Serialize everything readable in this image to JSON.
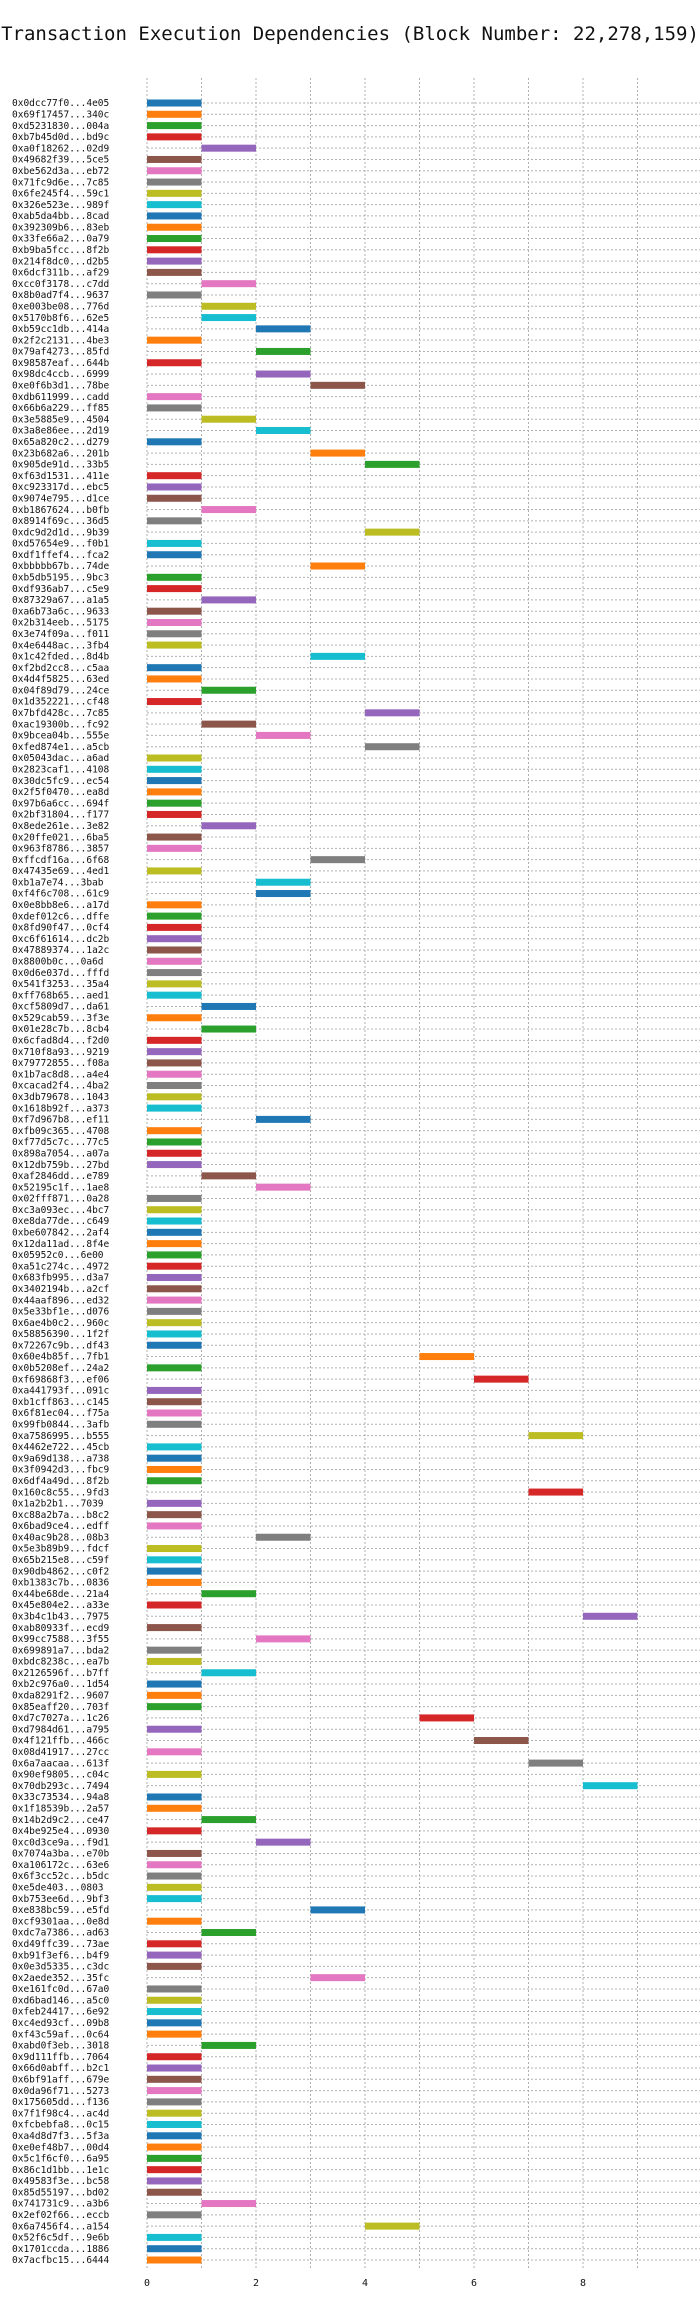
{
  "chart_data": {
    "type": "bar",
    "orientation": "horizontal-gantt",
    "title": "Transaction Execution Dependencies (Block Number: 22,278,159)",
    "xlabel": "",
    "ylabel": "",
    "xlim": [
      0,
      9.5
    ],
    "xticks": [
      0,
      2,
      4,
      6,
      8
    ],
    "grid": true,
    "palette": [
      "#1f77b4",
      "#ff7f0e",
      "#2ca02c",
      "#d62728",
      "#9467bd",
      "#8c564b",
      "#e377c2",
      "#7f7f7f",
      "#bcbd22",
      "#17becf"
    ],
    "bars": [
      {
        "label": "0x0dcc77f0...4e05",
        "start": 0,
        "end": 1
      },
      {
        "label": "0x69f17457...340c",
        "start": 0,
        "end": 1
      },
      {
        "label": "0xd5231830...004a",
        "start": 0,
        "end": 1
      },
      {
        "label": "0xb7b45d0d...bd9c",
        "start": 0,
        "end": 1
      },
      {
        "label": "0xa0f18262...02d9",
        "start": 1,
        "end": 2
      },
      {
        "label": "0x49682f39...5ce5",
        "start": 0,
        "end": 1
      },
      {
        "label": "0xbe562d3a...eb72",
        "start": 0,
        "end": 1
      },
      {
        "label": "0x71fc9d6e...7c85",
        "start": 0,
        "end": 1
      },
      {
        "label": "0x6fe245f4...59c1",
        "start": 0,
        "end": 1
      },
      {
        "label": "0x326e523e...989f",
        "start": 0,
        "end": 1
      },
      {
        "label": "0xab5da4bb...8cad",
        "start": 0,
        "end": 1
      },
      {
        "label": "0x392309b6...83eb",
        "start": 0,
        "end": 1
      },
      {
        "label": "0x33fe66a2...0a79",
        "start": 0,
        "end": 1
      },
      {
        "label": "0xb9ba5fcc...8f2b",
        "start": 0,
        "end": 1
      },
      {
        "label": "0x214f8dc0...d2b5",
        "start": 0,
        "end": 1
      },
      {
        "label": "0x6dcf311b...af29",
        "start": 0,
        "end": 1
      },
      {
        "label": "0xcc0f3178...c7dd",
        "start": 1,
        "end": 2
      },
      {
        "label": "0x8b0ad7f4...9637",
        "start": 0,
        "end": 1
      },
      {
        "label": "0xe003be08...776d",
        "start": 1,
        "end": 2
      },
      {
        "label": "0x5170b8f6...62e5",
        "start": 1,
        "end": 2
      },
      {
        "label": "0xb59cc1db...414a",
        "start": 2,
        "end": 3
      },
      {
        "label": "0x2f2c2131...4be3",
        "start": 0,
        "end": 1
      },
      {
        "label": "0x79af4273...85fd",
        "start": 2,
        "end": 3
      },
      {
        "label": "0x98587eaf...644b",
        "start": 0,
        "end": 1
      },
      {
        "label": "0x98dc4ccb...6999",
        "start": 2,
        "end": 3
      },
      {
        "label": "0xe0f6b3d1...78be",
        "start": 3,
        "end": 4
      },
      {
        "label": "0xdb611999...cadd",
        "start": 0,
        "end": 1
      },
      {
        "label": "0x66b6a229...ff85",
        "start": 0,
        "end": 1
      },
      {
        "label": "0x3e5885e9...4504",
        "start": 1,
        "end": 2
      },
      {
        "label": "0x3a8e86ee...2d19",
        "start": 2,
        "end": 3
      },
      {
        "label": "0x65a820c2...d279",
        "start": 0,
        "end": 1
      },
      {
        "label": "0x23b682a6...201b",
        "start": 3,
        "end": 4
      },
      {
        "label": "0x905de91d...33b5",
        "start": 4,
        "end": 5
      },
      {
        "label": "0xf63d1531...411e",
        "start": 0,
        "end": 1
      },
      {
        "label": "0xc923317d...ebc5",
        "start": 0,
        "end": 1
      },
      {
        "label": "0x9074e795...d1ce",
        "start": 0,
        "end": 1
      },
      {
        "label": "0xb1867624...b0fb",
        "start": 1,
        "end": 2
      },
      {
        "label": "0x8914f69c...36d5",
        "start": 0,
        "end": 1
      },
      {
        "label": "0xdc9d2d1d...9b39",
        "start": 4,
        "end": 5
      },
      {
        "label": "0xd57654e9...f0b1",
        "start": 0,
        "end": 1
      },
      {
        "label": "0xdf1ffef4...fca2",
        "start": 0,
        "end": 1
      },
      {
        "label": "0xbbbbb67b...74de",
        "start": 3,
        "end": 4
      },
      {
        "label": "0xb5db5195...9bc3",
        "start": 0,
        "end": 1
      },
      {
        "label": "0xdf936ab7...c5e9",
        "start": 0,
        "end": 1
      },
      {
        "label": "0x87329a67...a1a5",
        "start": 1,
        "end": 2
      },
      {
        "label": "0xa6b73a6c...9633",
        "start": 0,
        "end": 1
      },
      {
        "label": "0x2b314eeb...5175",
        "start": 0,
        "end": 1
      },
      {
        "label": "0x3e74f09a...f011",
        "start": 0,
        "end": 1
      },
      {
        "label": "0x4e6448ac...3fb4",
        "start": 0,
        "end": 1
      },
      {
        "label": "0x1c42fded...8d4b",
        "start": 3,
        "end": 4
      },
      {
        "label": "0xf2bd2cc8...c5aa",
        "start": 0,
        "end": 1
      },
      {
        "label": "0x4d4f5825...63ed",
        "start": 0,
        "end": 1
      },
      {
        "label": "0x04f89d79...24ce",
        "start": 1,
        "end": 2
      },
      {
        "label": "0x1d352221...cf48",
        "start": 0,
        "end": 1
      },
      {
        "label": "0x7bfd428c...7c85",
        "start": 4,
        "end": 5
      },
      {
        "label": "0xac19300b...fc92",
        "start": 1,
        "end": 2
      },
      {
        "label": "0x9bcea04b...555e",
        "start": 2,
        "end": 3
      },
      {
        "label": "0xfed874e1...a5cb",
        "start": 4,
        "end": 5
      },
      {
        "label": "0x05043dac...a6ad",
        "start": 0,
        "end": 1
      },
      {
        "label": "0x2823caf1...4108",
        "start": 0,
        "end": 1
      },
      {
        "label": "0x30dc5fc9...ec54",
        "start": 0,
        "end": 1
      },
      {
        "label": "0x2f5f0470...ea8d",
        "start": 0,
        "end": 1
      },
      {
        "label": "0x97b6a6cc...694f",
        "start": 0,
        "end": 1
      },
      {
        "label": "0x2bf31804...f177",
        "start": 0,
        "end": 1
      },
      {
        "label": "0x8ede261e...3e82",
        "start": 1,
        "end": 2
      },
      {
        "label": "0x20ffe021...6ba5",
        "start": 0,
        "end": 1
      },
      {
        "label": "0x963f8786...3857",
        "start": 0,
        "end": 1
      },
      {
        "label": "0xffcdf16a...6f68",
        "start": 3,
        "end": 4
      },
      {
        "label": "0x47435e69...4ed1",
        "start": 0,
        "end": 1
      },
      {
        "label": "0xb1a7e74...3bab",
        "start": 2,
        "end": 3
      },
      {
        "label": "0xf4f6c708...61c9",
        "start": 2,
        "end": 3
      },
      {
        "label": "0x0e8bb8e6...a17d",
        "start": 0,
        "end": 1
      },
      {
        "label": "0xdef012c6...dffe",
        "start": 0,
        "end": 1
      },
      {
        "label": "0x8fd90f47...0cf4",
        "start": 0,
        "end": 1
      },
      {
        "label": "0xc6f61614...dc2b",
        "start": 0,
        "end": 1
      },
      {
        "label": "0x47889374...1a2c",
        "start": 0,
        "end": 1
      },
      {
        "label": "0x8800b0c...0a6d",
        "start": 0,
        "end": 1
      },
      {
        "label": "0x0d6e037d...fffd",
        "start": 0,
        "end": 1
      },
      {
        "label": "0x541f3253...35a4",
        "start": 0,
        "end": 1
      },
      {
        "label": "0xff768b65...aed1",
        "start": 0,
        "end": 1
      },
      {
        "label": "0xcf5809d7...da61",
        "start": 1,
        "end": 2
      },
      {
        "label": "0x529cab59...3f3e",
        "start": 0,
        "end": 1
      },
      {
        "label": "0x01e28c7b...8cb4",
        "start": 1,
        "end": 2
      },
      {
        "label": "0x6cfad8d4...f2d0",
        "start": 0,
        "end": 1
      },
      {
        "label": "0x710f8a93...9219",
        "start": 0,
        "end": 1
      },
      {
        "label": "0x79772855...f08a",
        "start": 0,
        "end": 1
      },
      {
        "label": "0x1b7ac8d8...a4e4",
        "start": 0,
        "end": 1
      },
      {
        "label": "0xcacad2f4...4ba2",
        "start": 0,
        "end": 1
      },
      {
        "label": "0x3db79678...1043",
        "start": 0,
        "end": 1
      },
      {
        "label": "0x1618b92f...a373",
        "start": 0,
        "end": 1
      },
      {
        "label": "0xf7d967b8...ef11",
        "start": 2,
        "end": 3
      },
      {
        "label": "0xfb09c365...4708",
        "start": 0,
        "end": 1
      },
      {
        "label": "0xf77d5c7c...77c5",
        "start": 0,
        "end": 1
      },
      {
        "label": "0x898a7054...a07a",
        "start": 0,
        "end": 1
      },
      {
        "label": "0x12db759b...27bd",
        "start": 0,
        "end": 1
      },
      {
        "label": "0xaf2846dd...e789",
        "start": 1,
        "end": 2
      },
      {
        "label": "0x52195c1f...1ae8",
        "start": 2,
        "end": 3
      },
      {
        "label": "0x02fff871...0a28",
        "start": 0,
        "end": 1
      },
      {
        "label": "0xc3a093ec...4bc7",
        "start": 0,
        "end": 1
      },
      {
        "label": "0xe8da77de...c649",
        "start": 0,
        "end": 1
      },
      {
        "label": "0xbe607842...2af4",
        "start": 0,
        "end": 1
      },
      {
        "label": "0x12da11ad...8f4e",
        "start": 0,
        "end": 1
      },
      {
        "label": "0x05952c0...6e00",
        "start": 0,
        "end": 1
      },
      {
        "label": "0xa51c274c...4972",
        "start": 0,
        "end": 1
      },
      {
        "label": "0x683fb995...d3a7",
        "start": 0,
        "end": 1
      },
      {
        "label": "0x3402194b...a2cf",
        "start": 0,
        "end": 1
      },
      {
        "label": "0x44aaf896...ed32",
        "start": 0,
        "end": 1
      },
      {
        "label": "0x5e33bf1e...d076",
        "start": 0,
        "end": 1
      },
      {
        "label": "0x6ae4b0c2...960c",
        "start": 0,
        "end": 1
      },
      {
        "label": "0x58856390...1f2f",
        "start": 0,
        "end": 1
      },
      {
        "label": "0x72267c9b...df43",
        "start": 0,
        "end": 1
      },
      {
        "label": "0x60e4b85f...7fb1",
        "start": 5,
        "end": 6
      },
      {
        "label": "0x0b5208ef...24a2",
        "start": 0,
        "end": 1
      },
      {
        "label": "0xf69868f3...ef06",
        "start": 6,
        "end": 7
      },
      {
        "label": "0xa441793f...091c",
        "start": 0,
        "end": 1
      },
      {
        "label": "0xb1cff863...c145",
        "start": 0,
        "end": 1
      },
      {
        "label": "0x6f81ec04...f75a",
        "start": 0,
        "end": 1
      },
      {
        "label": "0x99fb0844...3afb",
        "start": 0,
        "end": 1
      },
      {
        "label": "0xa7586995...b555",
        "start": 7,
        "end": 8
      },
      {
        "label": "0x4462e722...45cb",
        "start": 0,
        "end": 1
      },
      {
        "label": "0x9a69d138...a738",
        "start": 0,
        "end": 1
      },
      {
        "label": "0x3f0942d3...fbc9",
        "start": 0,
        "end": 1
      },
      {
        "label": "0x6df4a49d...8f2b",
        "start": 0,
        "end": 1
      },
      {
        "label": "0x160c8c55...9fd3",
        "start": 7,
        "end": 8
      },
      {
        "label": "0x1a2b2b1...7039",
        "start": 0,
        "end": 1
      },
      {
        "label": "0xc88a2b7a...b8c2",
        "start": 0,
        "end": 1
      },
      {
        "label": "0x6bad9ce4...edff",
        "start": 0,
        "end": 1
      },
      {
        "label": "0x40ac9b28...08b3",
        "start": 2,
        "end": 3
      },
      {
        "label": "0x5e3b89b9...fdcf",
        "start": 0,
        "end": 1
      },
      {
        "label": "0x65b215e8...c59f",
        "start": 0,
        "end": 1
      },
      {
        "label": "0x90db4862...c0f2",
        "start": 0,
        "end": 1
      },
      {
        "label": "0xb1383c7b...0836",
        "start": 0,
        "end": 1
      },
      {
        "label": "0x44be68de...21a4",
        "start": 1,
        "end": 2
      },
      {
        "label": "0x45e804e2...a33e",
        "start": 0,
        "end": 1
      },
      {
        "label": "0x3b4c1b43...7975",
        "start": 8,
        "end": 9
      },
      {
        "label": "0xab80933f...ecd9",
        "start": 0,
        "end": 1
      },
      {
        "label": "0x99cc7588...3f55",
        "start": 2,
        "end": 3
      },
      {
        "label": "0x699891a7...bda2",
        "start": 0,
        "end": 1
      },
      {
        "label": "0xbdc8238c...ea7b",
        "start": 0,
        "end": 1
      },
      {
        "label": "0x2126596f...b7ff",
        "start": 1,
        "end": 2
      },
      {
        "label": "0xb2c976a0...1d54",
        "start": 0,
        "end": 1
      },
      {
        "label": "0xda8291f2...9607",
        "start": 0,
        "end": 1
      },
      {
        "label": "0x85eaff20...703f",
        "start": 0,
        "end": 1
      },
      {
        "label": "0xd7c7027a...1c26",
        "start": 5,
        "end": 6
      },
      {
        "label": "0xd7984d61...a795",
        "start": 0,
        "end": 1
      },
      {
        "label": "0x4f121ffb...466c",
        "start": 6,
        "end": 7
      },
      {
        "label": "0x08d41917...27cc",
        "start": 0,
        "end": 1
      },
      {
        "label": "0x6a7aacaa...613f",
        "start": 7,
        "end": 8
      },
      {
        "label": "0x90ef9805...c04c",
        "start": 0,
        "end": 1
      },
      {
        "label": "0x70db293c...7494",
        "start": 8,
        "end": 9
      },
      {
        "label": "0x33c73534...94a8",
        "start": 0,
        "end": 1
      },
      {
        "label": "0x1f18539b...2a57",
        "start": 0,
        "end": 1
      },
      {
        "label": "0x14b2d9c2...ce47",
        "start": 1,
        "end": 2
      },
      {
        "label": "0x4be925e4...0930",
        "start": 0,
        "end": 1
      },
      {
        "label": "0xc0d3ce9a...f9d1",
        "start": 2,
        "end": 3
      },
      {
        "label": "0x7074a3ba...e70b",
        "start": 0,
        "end": 1
      },
      {
        "label": "0xa106172c...63e6",
        "start": 0,
        "end": 1
      },
      {
        "label": "0x6f3cc52c...b5dc",
        "start": 0,
        "end": 1
      },
      {
        "label": "0xe5de403...0803",
        "start": 0,
        "end": 1
      },
      {
        "label": "0xb753ee6d...9bf3",
        "start": 0,
        "end": 1
      },
      {
        "label": "0xe838bc59...e5fd",
        "start": 3,
        "end": 4
      },
      {
        "label": "0xcf9301aa...0e8d",
        "start": 0,
        "end": 1
      },
      {
        "label": "0xdc7a7386...ad63",
        "start": 1,
        "end": 2
      },
      {
        "label": "0xd49ffc39...73ae",
        "start": 0,
        "end": 1
      },
      {
        "label": "0xb91f3ef6...b4f9",
        "start": 0,
        "end": 1
      },
      {
        "label": "0x0e3d5335...c3dc",
        "start": 0,
        "end": 1
      },
      {
        "label": "0x2aede352...35fc",
        "start": 3,
        "end": 4
      },
      {
        "label": "0xe161fc0d...67a0",
        "start": 0,
        "end": 1
      },
      {
        "label": "0xd6bad146...a5c0",
        "start": 0,
        "end": 1
      },
      {
        "label": "0xfeb24417...6e92",
        "start": 0,
        "end": 1
      },
      {
        "label": "0xc4ed93cf...09b8",
        "start": 0,
        "end": 1
      },
      {
        "label": "0xf43c59af...0c64",
        "start": 0,
        "end": 1
      },
      {
        "label": "0xabd0f3eb...3018",
        "start": 1,
        "end": 2
      },
      {
        "label": "0x9d111ffb...7064",
        "start": 0,
        "end": 1
      },
      {
        "label": "0x66d0abff...b2c1",
        "start": 0,
        "end": 1
      },
      {
        "label": "0x6bf91aff...679e",
        "start": 0,
        "end": 1
      },
      {
        "label": "0x0da96f71...5273",
        "start": 0,
        "end": 1
      },
      {
        "label": "0x175605dd...f136",
        "start": 0,
        "end": 1
      },
      {
        "label": "0x7f1f98c4...ac4d",
        "start": 0,
        "end": 1
      },
      {
        "label": "0xfcbebfa8...0c15",
        "start": 0,
        "end": 1
      },
      {
        "label": "0xa4d8d7f3...5f3a",
        "start": 0,
        "end": 1
      },
      {
        "label": "0xe0ef48b7...00d4",
        "start": 0,
        "end": 1
      },
      {
        "label": "0x5c1f6cf0...6a95",
        "start": 0,
        "end": 1
      },
      {
        "label": "0x86c1d1bb...1e1c",
        "start": 0,
        "end": 1
      },
      {
        "label": "0x49583f3e...bc58",
        "start": 0,
        "end": 1
      },
      {
        "label": "0x85d55197...bd02",
        "start": 0,
        "end": 1
      },
      {
        "label": "0x741731c9...a3b6",
        "start": 1,
        "end": 2
      },
      {
        "label": "0x2ef02f66...eccb",
        "start": 0,
        "end": 1
      },
      {
        "label": "0x6a7456f4...a154",
        "start": 4,
        "end": 5
      },
      {
        "label": "0x52f6c5df...9e6b",
        "start": 0,
        "end": 1
      },
      {
        "label": "0x1701ccda...1886",
        "start": 0,
        "end": 1
      },
      {
        "label": "0x7acfbc15...6444",
        "start": 0,
        "end": 1
      }
    ]
  }
}
